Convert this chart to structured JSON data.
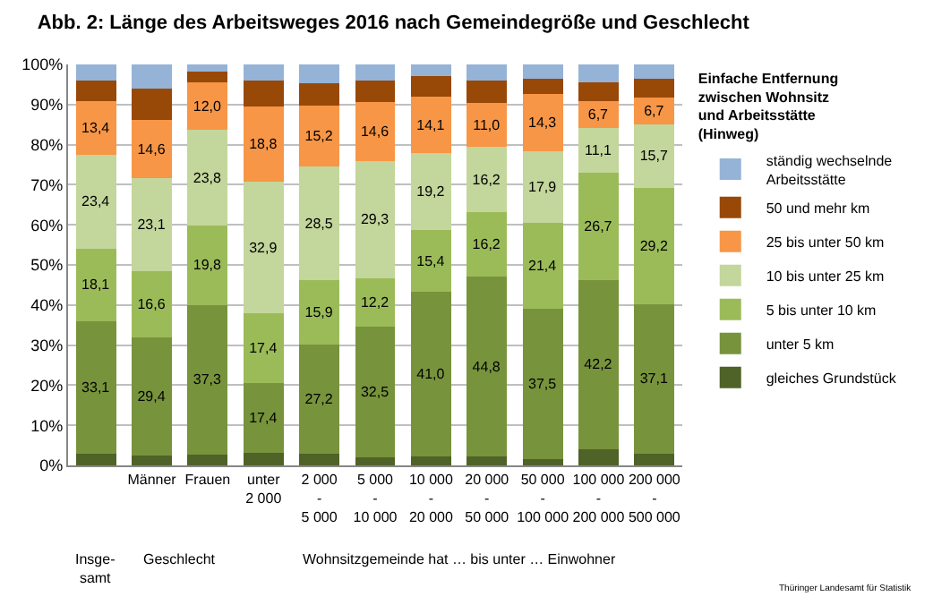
{
  "chart_data": {
    "type": "bar",
    "stacked": true,
    "title": "Abb. 2: Länge des Arbeitsweges 2016 nach Gemeindegröße und Geschlecht",
    "legend_title": "Einfache Entfernung\nzwischen Wohnsitz\nund Arbeitsstätte\n(Hinweg)",
    "categories": [
      null,
      "Männer",
      "Frauen",
      "unter\n2 000",
      "2 000\n-\n5 000",
      "5 000\n-\n10 000",
      "10 000\n-\n20 000",
      "20 000\n-\n50 000",
      "50 000\n-\n100 000",
      "100 000\n-\n200 000",
      "200 000\n-\n500 000"
    ],
    "series": [
      {
        "name": "gleiches Grundstück",
        "color": "#4f6228",
        "values": [
          2.9,
          2.5,
          2.7,
          3.1,
          3.0,
          2.0,
          2.2,
          2.2,
          1.5,
          4.1,
          3.0
        ]
      },
      {
        "name": "unter 5 km",
        "color": "#77933c",
        "values": [
          33.1,
          29.4,
          37.3,
          17.4,
          27.2,
          32.5,
          41.0,
          44.8,
          37.5,
          42.2,
          37.1
        ],
        "value_labels": [
          "33,1",
          "29,4",
          "37,3",
          "17,4",
          "27,2",
          "32,5",
          "41,0",
          "44,8",
          "37,5",
          "42,2",
          "37,1"
        ]
      },
      {
        "name": "5 bis unter 10 km",
        "color": "#9bbb59",
        "values": [
          18.1,
          16.6,
          19.8,
          17.4,
          15.9,
          12.2,
          15.4,
          16.2,
          21.4,
          26.7,
          29.2
        ],
        "value_labels": [
          "18,1",
          "16,6",
          "19,8",
          "17,4",
          "15,9",
          "12,2",
          "15,4",
          "16,2",
          "21,4",
          "26,7",
          "29,2"
        ]
      },
      {
        "name": "10 bis unter 25 km",
        "color": "#c3d69b",
        "values": [
          23.4,
          23.1,
          23.8,
          32.9,
          28.5,
          29.3,
          19.2,
          16.2,
          17.9,
          11.1,
          15.7
        ],
        "value_labels": [
          "23,4",
          "23,1",
          "23,8",
          "32,9",
          "28,5",
          "29,3",
          "19,2",
          "16,2",
          "17,9",
          "11,1",
          "15,7"
        ]
      },
      {
        "name": "25 bis unter 50 km",
        "color": "#f79646",
        "values": [
          13.4,
          14.6,
          12.0,
          18.8,
          15.2,
          14.6,
          14.1,
          11.0,
          14.3,
          6.7,
          6.7
        ],
        "value_labels": [
          "13,4",
          "14,6",
          "12,0",
          "18,8",
          "15,2",
          "14,6",
          "14,1",
          "11,0",
          "14,3",
          "6,7",
          "6,7"
        ]
      },
      {
        "name": "50 und mehr km",
        "color": "#984807",
        "values": [
          5.1,
          7.8,
          2.7,
          6.4,
          5.5,
          5.4,
          5.1,
          5.6,
          3.8,
          4.7,
          4.7
        ]
      },
      {
        "name": "ständig wechselnde\nArbeitsstätte",
        "color": "#95b3d7",
        "values": [
          4.0,
          6.0,
          1.7,
          4.0,
          4.7,
          4.0,
          3.0,
          4.0,
          3.6,
          4.5,
          3.6
        ]
      }
    ],
    "ylim": [
      0,
      100
    ],
    "yticks": [
      {
        "value": 0,
        "label": "0%"
      },
      {
        "value": 10,
        "label": "10%"
      },
      {
        "value": 20,
        "label": "20%"
      },
      {
        "value": 30,
        "label": "30%"
      },
      {
        "value": 40,
        "label": "40%"
      },
      {
        "value": 50,
        "label": "50%"
      },
      {
        "value": 60,
        "label": "60%"
      },
      {
        "value": 70,
        "label": "70%"
      },
      {
        "value": 80,
        "label": "80%"
      },
      {
        "value": 90,
        "label": "90%"
      },
      {
        "value": 100,
        "label": "100%"
      }
    ],
    "grid": "y",
    "legend": "right",
    "annotations": [
      "Insge-\nsamt",
      "Geschlecht",
      "Wohnsitzgemeinde hat … bis unter … Einwohner",
      "Thüringer Landesamt für Statistik"
    ]
  }
}
